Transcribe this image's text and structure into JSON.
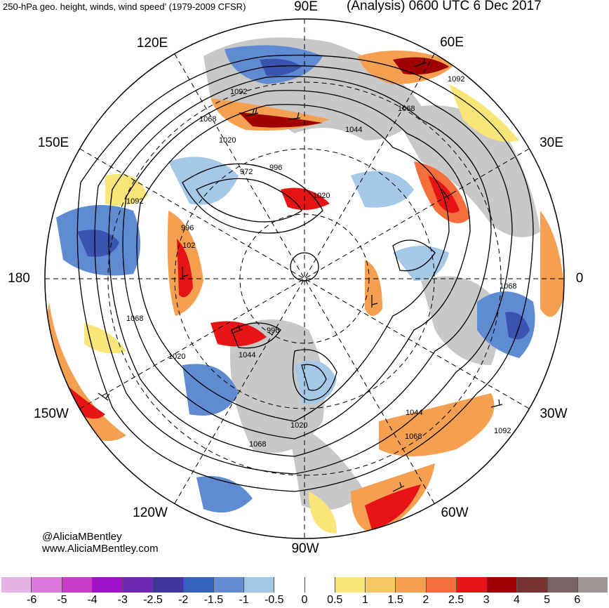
{
  "title": {
    "left": "250-hPa geo. height, winds, wind speed’ (1979-2009 CFSR)",
    "right": "(Analysis) 0600 UTC 6 Dec 2017"
  },
  "longitude_labels": {
    "e90": "90E",
    "e60": "60E",
    "e120": "120E",
    "e30": "30E",
    "e150": "150E",
    "e180": "180",
    "e0": "0",
    "w150": "150W",
    "w30": "30W",
    "w120": "120W",
    "w60": "60W",
    "w90": "90W"
  },
  "contour_labels": [
    {
      "key": "c1",
      "text": "1092"
    },
    {
      "key": "c2",
      "text": "1092"
    },
    {
      "key": "c3",
      "text": "1068"
    },
    {
      "key": "c4",
      "text": "1068"
    },
    {
      "key": "c5",
      "text": "1044"
    },
    {
      "key": "c6",
      "text": "1020"
    },
    {
      "key": "c7",
      "text": "972"
    },
    {
      "key": "c8",
      "text": "996"
    },
    {
      "key": "c9",
      "text": "1020"
    },
    {
      "key": "c10",
      "text": "1092"
    },
    {
      "key": "c11",
      "text": "996"
    },
    {
      "key": "c12",
      "text": "102"
    },
    {
      "key": "c13",
      "text": "1068"
    },
    {
      "key": "c14",
      "text": "1068"
    },
    {
      "key": "c15",
      "text": "996"
    },
    {
      "key": "c16",
      "text": "1044"
    },
    {
      "key": "c17",
      "text": "1020"
    },
    {
      "key": "c18",
      "text": "1020"
    },
    {
      "key": "c19",
      "text": "1068"
    },
    {
      "key": "c20",
      "text": "1044"
    },
    {
      "key": "c21",
      "text": "1068"
    },
    {
      "key": "c22",
      "text": "1092"
    }
  ],
  "credits": {
    "handle": "@AliciaMBentley",
    "site": "www.AliciaMBentley.com"
  },
  "colorbar": {
    "colors": [
      "#e6b3e6",
      "#dc78dc",
      "#c83cc8",
      "#a012c8",
      "#6e28b4",
      "#4136a0",
      "#3264be",
      "#648cd2",
      "#a0c8e6",
      "#ffffff",
      "#ffffff",
      "#fae678",
      "#f5c864",
      "#f5a050",
      "#f56e3c",
      "#e61414",
      "#a00000",
      "#783232",
      "#786464",
      "#a09696"
    ],
    "labels": [
      "-6",
      "-5",
      "-4",
      "-3",
      "-2.5",
      "-2",
      "-1.5",
      "-1",
      "-0.5",
      "0",
      "0.5",
      "1",
      "1.5",
      "2",
      "2.5",
      "3",
      "4",
      "5",
      "6"
    ]
  },
  "map_colors": {
    "land": "#c8c8c8",
    "strong_negative": "#3a52b0",
    "negative": "#5f8bd2",
    "weak_negative": "#a5c8e8",
    "weak_positive": "#fae678",
    "positive": "#f5a050",
    "strong_positive": "#e61414",
    "extreme_positive": "#a00000"
  }
}
